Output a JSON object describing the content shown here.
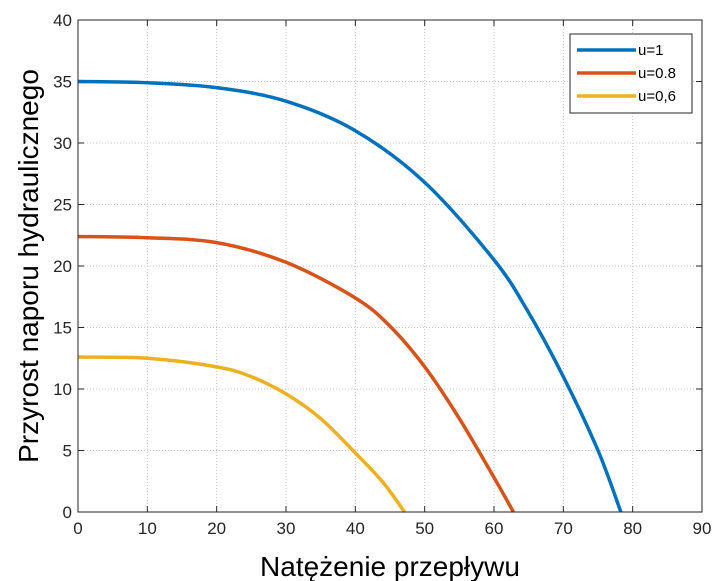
{
  "chart_data": {
    "type": "line",
    "xlabel": "Natężenie przepływu",
    "ylabel": "Przyrost naporu hydraulicznego",
    "xlim": [
      0,
      90
    ],
    "ylim": [
      0,
      40
    ],
    "xticks": [
      0,
      10,
      20,
      30,
      40,
      50,
      60,
      70,
      80,
      90
    ],
    "yticks": [
      0,
      5,
      10,
      15,
      20,
      25,
      30,
      35,
      40
    ],
    "grid": true,
    "legend_position": "top-right",
    "series": [
      {
        "name": "u=1",
        "color": "#0072BD",
        "x": [
          0,
          10,
          20,
          30,
          40,
          50,
          60,
          65,
          70,
          75,
          78.3
        ],
        "y": [
          35.0,
          34.9,
          34.5,
          33.4,
          31.0,
          26.8,
          20.5,
          16.2,
          11.0,
          5.0,
          0.0
        ]
      },
      {
        "name": "u=0.8",
        "color": "#D95319",
        "x": [
          0,
          10,
          20,
          30,
          40,
          45,
          50,
          55,
          60,
          62.8
        ],
        "y": [
          22.4,
          22.3,
          21.9,
          20.3,
          17.4,
          15.1,
          11.8,
          7.6,
          2.8,
          0.0
        ]
      },
      {
        "name": "u=0,6",
        "color": "#EDB120",
        "x": [
          0,
          10,
          20,
          25,
          30,
          35,
          40,
          44,
          47.1
        ],
        "y": [
          12.6,
          12.5,
          11.8,
          11.0,
          9.6,
          7.6,
          4.8,
          2.4,
          0.0
        ]
      }
    ]
  }
}
